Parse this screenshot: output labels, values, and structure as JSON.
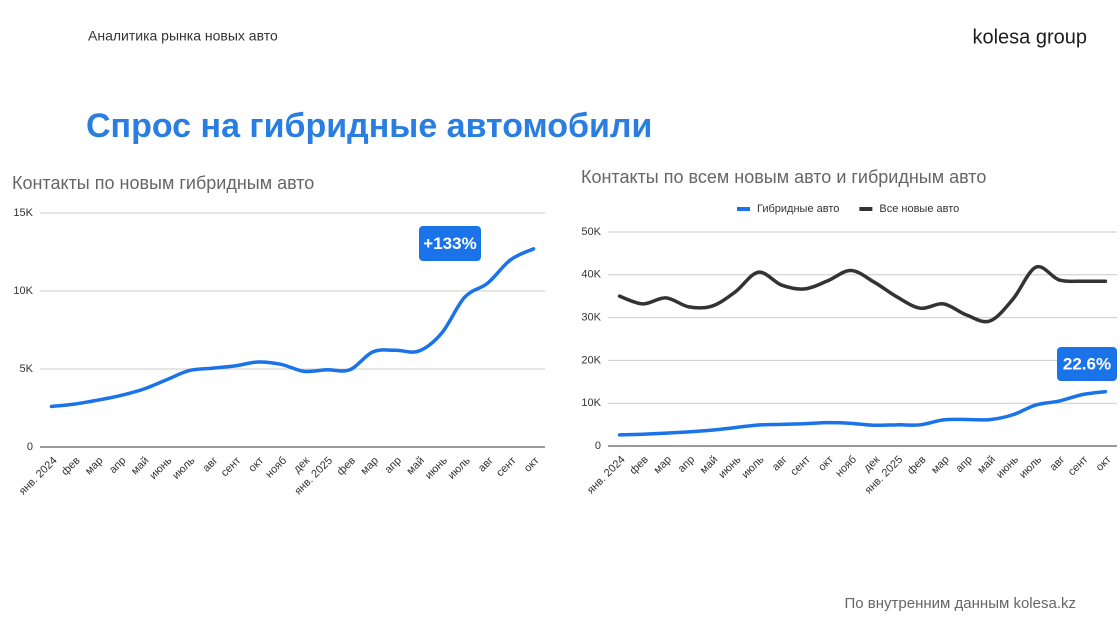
{
  "header": {
    "subtitle": "Аналитика рынка новых авто",
    "logo": "kolesa group"
  },
  "title": "Спрос на гибридные автомобили",
  "footer": "По внутренним данным kolesa.kz",
  "chart_data": [
    {
      "type": "line",
      "title": "Контакты по новым гибридным авто",
      "categories": [
        "янв. 2024",
        "фев",
        "мар",
        "апр",
        "май",
        "июнь",
        "июль",
        "авг",
        "сент",
        "окт",
        "нояб",
        "дек",
        "янв. 2025",
        "фев",
        "мар",
        "апр",
        "май",
        "июнь",
        "июль",
        "авг",
        "сент",
        "окт"
      ],
      "values": [
        2600,
        2750,
        3000,
        3300,
        3700,
        4300,
        4900,
        5050,
        5200,
        5450,
        5300,
        4850,
        4950,
        4950,
        6100,
        6200,
        6150,
        7300,
        9600,
        10500,
        12000,
        12700
      ],
      "color": "#1a73e8",
      "ylim": [
        0,
        15000
      ],
      "yticks": [
        0,
        {
          "value": 5000,
          "label": "5K"
        },
        {
          "value": 10000,
          "label": "10K"
        },
        {
          "value": 15000,
          "label": "15K"
        }
      ],
      "grid": true,
      "annotation": "+133%"
    },
    {
      "type": "line",
      "title": "Контакты по всем новым авто и гибридным авто",
      "categories": [
        "янв. 2024",
        "фев",
        "мар",
        "апр",
        "май",
        "июнь",
        "июль",
        "авг",
        "сент",
        "окт",
        "нояб",
        "дек",
        "янв. 2025",
        "фев",
        "мар",
        "апр",
        "май",
        "июнь",
        "июль",
        "авг",
        "сент",
        "окт"
      ],
      "series": [
        {
          "name": "Гибридные авто",
          "color": "#1a73e8",
          "values": [
            2600,
            2750,
            3000,
            3300,
            3700,
            4300,
            4900,
            5050,
            5200,
            5450,
            5300,
            4850,
            4950,
            4950,
            6100,
            6200,
            6150,
            7300,
            9600,
            10500,
            12000,
            12700
          ]
        },
        {
          "name": "Все новые авто",
          "color": "#333333",
          "values": [
            35000,
            33200,
            34600,
            32500,
            32700,
            36000,
            40600,
            37600,
            36700,
            38600,
            41000,
            38300,
            34800,
            32200,
            33200,
            30600,
            29200,
            34300,
            41800,
            38800,
            38500,
            38500
          ]
        }
      ],
      "ylim": [
        0,
        50000
      ],
      "yticks": [
        0,
        {
          "value": 10000,
          "label": "10K"
        },
        {
          "value": 20000,
          "label": "20K"
        },
        {
          "value": 30000,
          "label": "30K"
        },
        {
          "value": 40000,
          "label": "40K"
        },
        {
          "value": 50000,
          "label": "50K"
        }
      ],
      "grid": true,
      "legend": "top",
      "annotation": "22.6%"
    }
  ]
}
